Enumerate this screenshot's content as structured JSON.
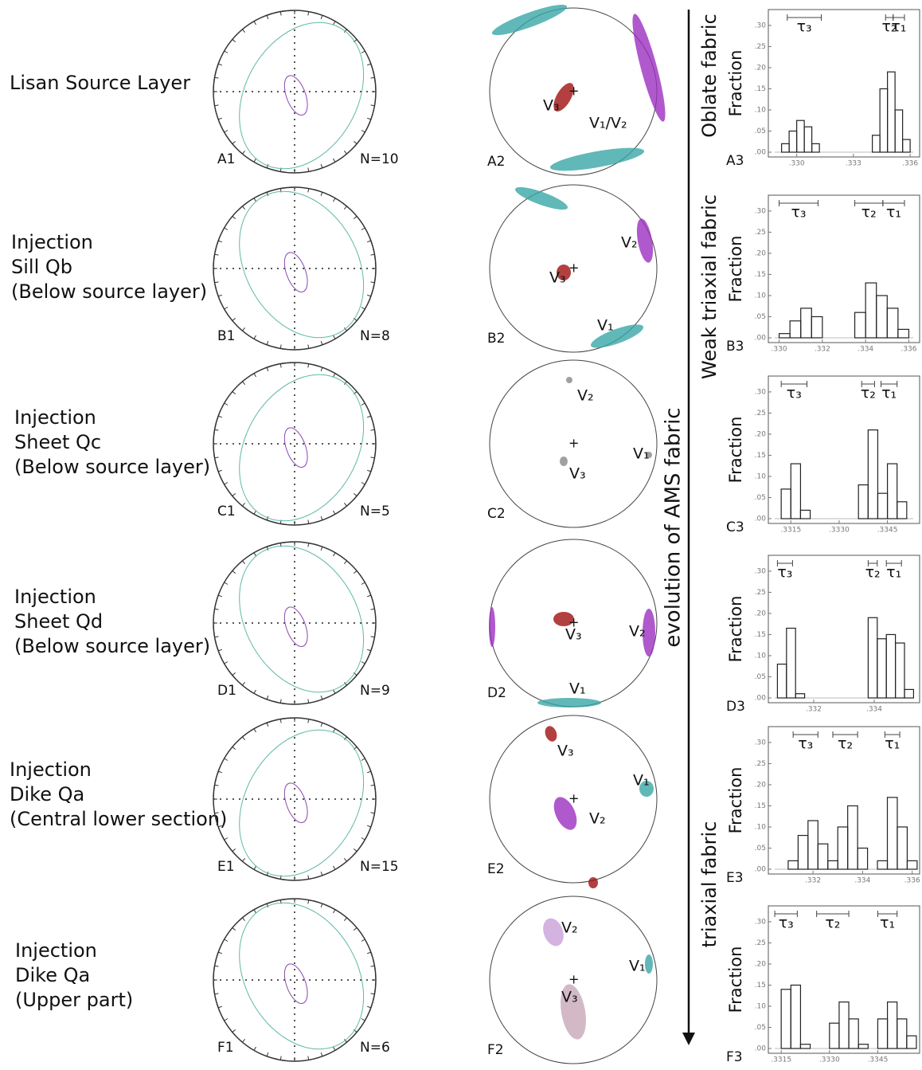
{
  "side_labels": {
    "top": "Oblate fabric",
    "upper": "Weak triaxial fabric",
    "middle": "evolution of AMS fabric",
    "lower": "triaxial fabric"
  },
  "histogram_axis": {
    "ylabel": "Fraction",
    "ylim": [
      0,
      0.33
    ],
    "yticks": [
      {
        "value": 0,
        "label": ".00"
      },
      {
        "value": 0.05,
        "label": ".05"
      },
      {
        "value": 0.1,
        "label": ".10"
      },
      {
        "value": 0.15,
        "label": ".15"
      },
      {
        "value": 0.2,
        "label": ".20"
      },
      {
        "value": 0.25,
        "label": ".25"
      },
      {
        "value": 0.3,
        "label": ".30"
      }
    ]
  },
  "rows": [
    {
      "label": [
        "Lisan Source Layer"
      ],
      "net1": "A1",
      "n": "N=10",
      "net2": "A2",
      "vectors": [
        "V₃",
        "V₁/V₂"
      ],
      "hist_label": "A3",
      "histogram": {
        "type": "histogram",
        "xlim": [
          0.3285,
          0.3365
        ],
        "xticks": [
          {
            "value": 0.33,
            "label": ".330"
          },
          {
            "value": 0.333,
            "label": ".333"
          },
          {
            "value": 0.336,
            "label": ".336"
          }
        ],
        "bins": [
          0.3292,
          0.3296,
          0.33,
          0.3304,
          0.3308,
          0.3312,
          0.3316,
          0.332,
          0.3324,
          0.3328,
          0.3332,
          0.3336,
          0.334,
          0.3344,
          0.3348,
          0.3352,
          0.3356,
          0.336
        ],
        "counts": [
          0.02,
          0.05,
          0.075,
          0.06,
          0.02,
          0,
          0,
          0,
          0,
          0,
          0,
          0,
          0.04,
          0.15,
          0.19,
          0.1,
          0.03
        ],
        "tau": [
          {
            "name": "τ₃",
            "range": [
              0.3295,
              0.3313
            ]
          },
          {
            "name": "τ₂",
            "range": [
              0.3347,
              0.3351
            ]
          },
          {
            "name": "τ₁",
            "range": [
              0.3351,
              0.3357
            ]
          }
        ]
      }
    },
    {
      "label": [
        "Injection",
        "Sill Qb",
        "(Below source layer)"
      ],
      "net1": "B1",
      "n": "N=8",
      "net2": "B2",
      "vectors": [
        "V₂",
        "V₃",
        "V₁"
      ],
      "hist_label": "B3",
      "histogram": {
        "type": "histogram",
        "xlim": [
          0.3295,
          0.3365
        ],
        "xticks": [
          {
            "value": 0.33,
            "label": ".330"
          },
          {
            "value": 0.332,
            "label": ".332"
          },
          {
            "value": 0.334,
            "label": ".334"
          },
          {
            "value": 0.336,
            "label": ".336"
          }
        ],
        "bins": [
          0.33,
          0.3305,
          0.331,
          0.3315,
          0.332,
          0.3325,
          0.333,
          0.3335,
          0.334,
          0.3345,
          0.335,
          0.3355,
          0.336
        ],
        "counts": [
          0.01,
          0.04,
          0.07,
          0.05,
          0,
          0,
          0,
          0.06,
          0.13,
          0.1,
          0.07,
          0.02
        ],
        "tau": [
          {
            "name": "τ₃",
            "range": [
              0.33,
              0.3318
            ]
          },
          {
            "name": "τ₂",
            "range": [
              0.3335,
              0.3348
            ]
          },
          {
            "name": "τ₁",
            "range": [
              0.3348,
              0.3358
            ]
          }
        ]
      }
    },
    {
      "label": [
        "Injection",
        "Sheet Qc",
        "(Below source layer)"
      ],
      "net1": "C1",
      "n": "N=5",
      "net2": "C2",
      "vectors": [
        "V₂",
        "V₁",
        "V₃"
      ],
      "hist_label": "C3",
      "histogram": {
        "type": "histogram",
        "xlim": [
          0.3308,
          0.3355
        ],
        "xticks": [
          {
            "value": 0.3315,
            "label": ".3315"
          },
          {
            "value": 0.333,
            "label": ".3330"
          },
          {
            "value": 0.3345,
            "label": ".3345"
          }
        ],
        "bins": [
          0.3312,
          0.3315,
          0.3318,
          0.3321,
          0.3324,
          0.3327,
          0.333,
          0.3333,
          0.3336,
          0.3339,
          0.3342,
          0.3345,
          0.3348,
          0.3351
        ],
        "counts": [
          0.07,
          0.13,
          0.02,
          0,
          0,
          0,
          0,
          0,
          0.08,
          0.21,
          0.06,
          0.13,
          0.04
        ],
        "tau": [
          {
            "name": "τ₃",
            "range": [
              0.3312,
              0.332
            ]
          },
          {
            "name": "τ₂",
            "range": [
              0.3337,
              0.3341
            ]
          },
          {
            "name": "τ₁",
            "range": [
              0.3343,
              0.3348
            ]
          }
        ]
      }
    },
    {
      "label": [
        "Injection",
        "Sheet Qd",
        "(Below source layer)"
      ],
      "net1": "D1",
      "n": "N=9",
      "net2": "D2",
      "vectors": [
        "V₃",
        "V₂",
        "V₁"
      ],
      "hist_label": "D3",
      "histogram": {
        "type": "histogram",
        "xlim": [
          0.3305,
          0.3355
        ],
        "xticks": [
          {
            "value": 0.332,
            "label": ".332"
          },
          {
            "value": 0.334,
            "label": ".334"
          }
        ],
        "bins": [
          0.3308,
          0.3311,
          0.3314,
          0.3317,
          0.332,
          0.3323,
          0.3326,
          0.3329,
          0.3332,
          0.3335,
          0.3338,
          0.3341,
          0.3344,
          0.3347,
          0.335,
          0.3353
        ],
        "counts": [
          0.08,
          0.165,
          0.01,
          0,
          0,
          0,
          0,
          0,
          0,
          0,
          0.19,
          0.14,
          0.15,
          0.13,
          0.02
        ],
        "tau": [
          {
            "name": "τ₃",
            "range": [
              0.3308,
              0.3313
            ]
          },
          {
            "name": "τ₂",
            "range": [
              0.3338,
              0.3341
            ]
          },
          {
            "name": "τ₁",
            "range": [
              0.3344,
              0.3349
            ]
          }
        ]
      }
    },
    {
      "label": [
        "Injection",
        "Dike Qa",
        "(Central lower section)"
      ],
      "net1": "E1",
      "n": "N=15",
      "net2": "E2",
      "vectors": [
        "V₃",
        "V₁",
        "V₂"
      ],
      "hist_label": "E3",
      "histogram": {
        "type": "histogram",
        "xlim": [
          0.3302,
          0.3363
        ],
        "xticks": [
          {
            "value": 0.332,
            "label": ".332"
          },
          {
            "value": 0.334,
            "label": ".334"
          },
          {
            "value": 0.336,
            "label": ".336"
          }
        ],
        "bins": [
          0.331,
          0.3314,
          0.3318,
          0.3322,
          0.3326,
          0.333,
          0.3334,
          0.3338,
          0.3342,
          0.3346,
          0.335,
          0.3354,
          0.3358,
          0.3362
        ],
        "counts": [
          0.02,
          0.08,
          0.115,
          0.06,
          0.02,
          0.1,
          0.15,
          0.05,
          0,
          0.02,
          0.17,
          0.1,
          0.02
        ],
        "tau": [
          {
            "name": "τ₃",
            "range": [
              0.3312,
              0.3322
            ]
          },
          {
            "name": "τ₂",
            "range": [
              0.3328,
              0.3338
            ]
          },
          {
            "name": "τ₁",
            "range": [
              0.3349,
              0.3355
            ]
          }
        ]
      }
    },
    {
      "label": [
        "Injection",
        "Dike Qa",
        "(Upper part)"
      ],
      "net1": "F1",
      "n": "N=6",
      "net2": "F2",
      "vectors": [
        "V₂",
        "V₁",
        "V₃"
      ],
      "hist_label": "F3",
      "histogram": {
        "type": "histogram",
        "xlim": [
          0.3311,
          0.3358
        ],
        "xticks": [
          {
            "value": 0.3315,
            "label": ".3315"
          },
          {
            "value": 0.333,
            "label": ".3330"
          },
          {
            "value": 0.3345,
            "label": ".3345"
          }
        ],
        "bins": [
          0.3315,
          0.3318,
          0.3321,
          0.3324,
          0.3327,
          0.333,
          0.3333,
          0.3336,
          0.3339,
          0.3342,
          0.3345,
          0.3348,
          0.3351,
          0.3354,
          0.3357
        ],
        "counts": [
          0.14,
          0.15,
          0.01,
          0,
          0,
          0.06,
          0.11,
          0.07,
          0.01,
          0,
          0.07,
          0.11,
          0.07,
          0.03
        ],
        "tau": [
          {
            "name": "τ₃",
            "range": [
              0.3313,
              0.332
            ]
          },
          {
            "name": "τ₂",
            "range": [
              0.3326,
              0.3336
            ]
          },
          {
            "name": "τ₁",
            "range": [
              0.3345,
              0.3351
            ]
          }
        ]
      }
    }
  ]
}
